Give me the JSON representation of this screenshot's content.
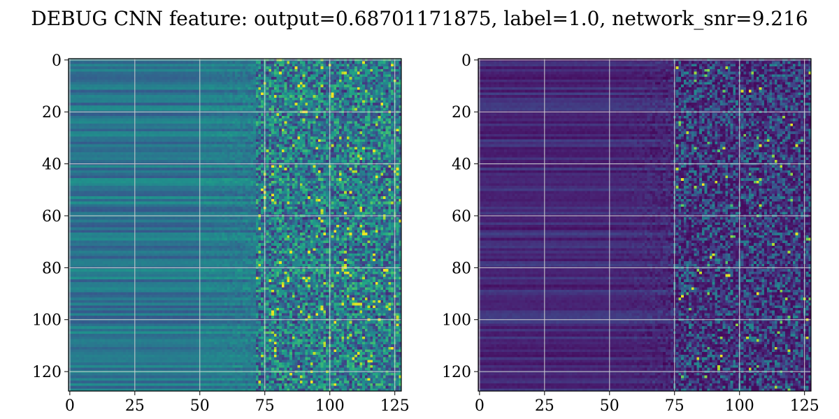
{
  "title": "DEBUG CNN feature: output=0.68701171875, label=1.0, network_snr=9.216",
  "chart_data": [
    {
      "type": "heatmap",
      "colormap": "viridis",
      "rows": 128,
      "cols": 128,
      "xlim": [
        0,
        127
      ],
      "ylim": [
        0,
        127
      ],
      "y_inverted": true,
      "xticks": [
        0,
        25,
        50,
        75,
        100,
        125
      ],
      "xtick_labels": [
        "0",
        "25",
        "50",
        "75",
        "100",
        "125"
      ],
      "yticks": [
        0,
        20,
        40,
        60,
        80,
        100,
        120
      ],
      "ytick_labels": [
        "0",
        "20",
        "40",
        "60",
        "80",
        "100",
        "120"
      ],
      "grid": true,
      "color_range": [
        0.0,
        1.0
      ],
      "base_level": 0.42,
      "noise_onset_col": 72
    },
    {
      "type": "heatmap",
      "colormap": "viridis",
      "rows": 128,
      "cols": 128,
      "xlim": [
        0,
        127
      ],
      "ylim": [
        0,
        127
      ],
      "y_inverted": true,
      "xticks": [
        0,
        25,
        50,
        75,
        100,
        125
      ],
      "xtick_labels": [
        "0",
        "25",
        "50",
        "75",
        "100",
        "125"
      ],
      "yticks": [
        0,
        20,
        40,
        60,
        80,
        100,
        120
      ],
      "ytick_labels": [
        "0",
        "20",
        "40",
        "60",
        "80",
        "100",
        "120"
      ],
      "grid": true,
      "color_range": [
        0.0,
        1.0
      ],
      "base_level": 0.12,
      "noise_onset_col": 75
    }
  ]
}
